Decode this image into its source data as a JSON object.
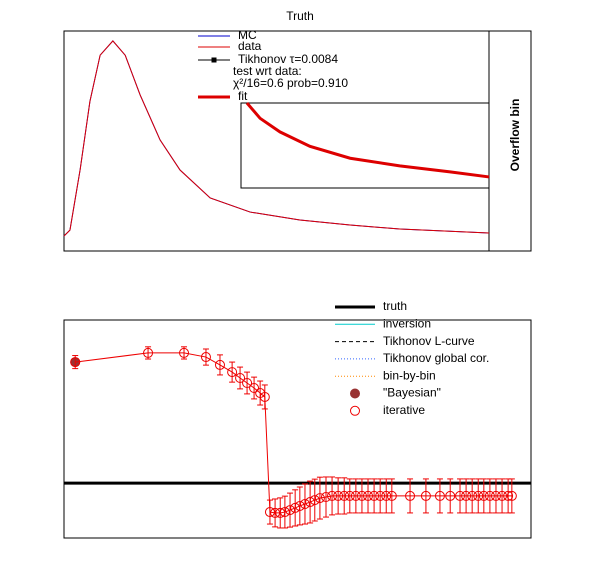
{
  "chart_data": [
    {
      "type": "line",
      "title": "Truth",
      "side_label": "Overflow bin",
      "xlim": [
        0,
        1
      ],
      "ylim": [
        0,
        1
      ],
      "insetxlim": [
        0,
        1
      ],
      "insetylim": [
        0,
        1
      ],
      "annotations": [
        "test wrt data:",
        "χ²/16=0.6 prob=0.910"
      ],
      "series": [
        {
          "name": "MC",
          "color": "#0000cc",
          "style": "line",
          "x": [
            0,
            0.014,
            0.038,
            0.061,
            0.085,
            0.115,
            0.144,
            0.179,
            0.226,
            0.273,
            0.344,
            0.438,
            0.555,
            0.673,
            0.79,
            1
          ],
          "values": [
            0.068,
            0.095,
            0.37,
            0.68,
            0.89,
            0.955,
            0.89,
            0.71,
            0.505,
            0.368,
            0.241,
            0.177,
            0.141,
            0.118,
            0.1,
            0.082
          ]
        },
        {
          "name": "data",
          "color": "#dd0000",
          "style": "line",
          "x": [
            0,
            0.014,
            0.038,
            0.061,
            0.085,
            0.115,
            0.144,
            0.179,
            0.226,
            0.273,
            0.344,
            0.438,
            0.555,
            0.673,
            0.79,
            1
          ],
          "values": [
            0.068,
            0.095,
            0.37,
            0.68,
            0.89,
            0.955,
            0.89,
            0.71,
            0.505,
            0.368,
            0.241,
            0.177,
            0.141,
            0.118,
            0.1,
            0.082
          ]
        },
        {
          "name": "Tikhonov τ=0.0084",
          "color": "#000000",
          "style": "marker-line"
        },
        {
          "name": "fit",
          "color": "#dd0000",
          "style": "thick",
          "axis": "inset",
          "x": [
            0.024,
            0.077,
            0.157,
            0.278,
            0.44,
            0.64,
            0.843,
            1
          ],
          "values": [
            1.0,
            0.82,
            0.66,
            0.49,
            0.35,
            0.26,
            0.19,
            0.13
          ]
        }
      ]
    },
    {
      "type": "errorbar",
      "xlim": [
        0,
        1
      ],
      "ylim": [
        0,
        1
      ],
      "series": [
        {
          "name": "truth",
          "color": "#000000",
          "style": "thick",
          "x": [
            0,
            1
          ],
          "values": [
            0.252,
            0.252
          ]
        },
        {
          "name": "inversion",
          "color": "#00cccc",
          "style": "line"
        },
        {
          "name": "Tikhonov L-curve",
          "color": "#000000",
          "style": "dashed"
        },
        {
          "name": "Tikhonov global cor.",
          "color": "#3366ff",
          "style": "dotted"
        },
        {
          "name": "bin-by-bin",
          "color": "#ff8800",
          "style": "dotted"
        },
        {
          "name": "\"Bayesian\"",
          "color": "#993333",
          "style": "filled-circle",
          "x": [
            0.024
          ],
          "values": [
            0.807
          ]
        },
        {
          "name": "iterative",
          "color": "#ee0000",
          "style": "open-circle",
          "x": [
            0.024,
            0.18,
            0.257,
            0.304,
            0.334,
            0.36,
            0.377,
            0.392,
            0.407,
            0.42,
            0.43,
            0.441,
            0.452,
            0.463,
            0.473,
            0.484,
            0.495,
            0.505,
            0.516,
            0.527,
            0.537,
            0.548,
            0.561,
            0.574,
            0.587,
            0.6,
            0.612,
            0.625,
            0.638,
            0.651,
            0.664,
            0.677,
            0.69,
            0.702,
            0.741,
            0.775,
            0.805,
            0.827,
            0.848,
            0.861,
            0.874,
            0.887,
            0.899,
            0.912,
            0.925,
            0.938,
            0.951,
            0.959
          ],
          "values": [
            0.807,
            0.849,
            0.849,
            0.83,
            0.794,
            0.761,
            0.734,
            0.711,
            0.688,
            0.665,
            0.647,
            0.119,
            0.115,
            0.115,
            0.119,
            0.128,
            0.138,
            0.147,
            0.156,
            0.165,
            0.174,
            0.183,
            0.188,
            0.193,
            0.193,
            0.193,
            0.193,
            0.193,
            0.193,
            0.193,
            0.193,
            0.193,
            0.193,
            0.193,
            0.193,
            0.193,
            0.193,
            0.193,
            0.193,
            0.193,
            0.193,
            0.193,
            0.193,
            0.193,
            0.193,
            0.193,
            0.193,
            0.193
          ],
          "errors": [
            0.03,
            0.028,
            0.028,
            0.037,
            0.046,
            0.046,
            0.05,
            0.05,
            0.05,
            0.055,
            0.055,
            0.055,
            0.064,
            0.069,
            0.073,
            0.078,
            0.083,
            0.087,
            0.092,
            0.096,
            0.096,
            0.096,
            0.092,
            0.087,
            0.083,
            0.083,
            0.078,
            0.078,
            0.078,
            0.078,
            0.078,
            0.078,
            0.078,
            0.078,
            0.078,
            0.078,
            0.078,
            0.078,
            0.078,
            0.078,
            0.078,
            0.078,
            0.078,
            0.078,
            0.078,
            0.078,
            0.078,
            0.078
          ]
        }
      ]
    }
  ]
}
